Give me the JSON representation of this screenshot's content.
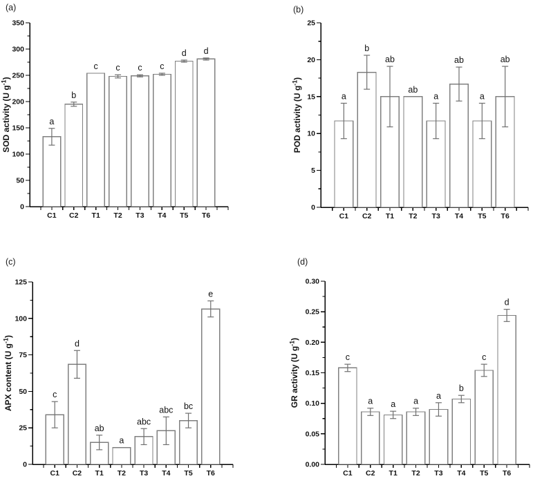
{
  "figure": {
    "background": "#ffffff",
    "axis_color": "#000000",
    "bar_fill": "#ffffff",
    "bar_stroke": "#7f7f7f",
    "error_color": "#6f6f6f",
    "letter_color": "#111111",
    "tick_label_color": "#111111"
  },
  "chart_data": [
    {
      "panel_label": "(a)",
      "type": "bar",
      "title": "",
      "xlabel": "",
      "ylabel": "SOD activity (U g⁻¹)",
      "ylim": [
        0,
        350
      ],
      "ytick_step": 50,
      "yminor_per_interval": 1,
      "ytick_decimals": 0,
      "grid": false,
      "legend": "none",
      "categories": [
        "C1",
        "C2",
        "T1",
        "T2",
        "T3",
        "T4",
        "T5",
        "T6"
      ],
      "values": [
        133,
        195,
        254,
        248,
        249,
        252,
        277,
        281
      ],
      "errors": [
        16,
        4,
        null,
        3,
        2,
        2,
        2,
        2
      ],
      "sig_letters": [
        "a",
        "b",
        "c",
        "c",
        "c",
        "c",
        "d",
        "d"
      ]
    },
    {
      "panel_label": "(b)",
      "type": "bar",
      "title": "",
      "xlabel": "",
      "ylabel": "POD activity (U g⁻¹)",
      "ylim": [
        0,
        25
      ],
      "ytick_step": 5,
      "yminor_per_interval": 1,
      "ytick_decimals": 0,
      "grid": false,
      "legend": "none",
      "categories": [
        "C1",
        "C2",
        "T1",
        "T2",
        "T3",
        "T4",
        "T5",
        "T6"
      ],
      "values": [
        11.7,
        18.3,
        15.0,
        15.0,
        11.7,
        16.7,
        11.7,
        15.0
      ],
      "errors": [
        2.4,
        2.3,
        4.1,
        null,
        2.4,
        2.3,
        2.4,
        4.1
      ],
      "sig_letters": [
        "a",
        "b",
        "ab",
        "ab",
        "a",
        "ab",
        "a",
        "ab"
      ]
    },
    {
      "panel_label": "(c)",
      "type": "bar",
      "title": "",
      "xlabel": "",
      "ylabel": "APX content (U g⁻¹)",
      "ylim": [
        0,
        125
      ],
      "ytick_step": 25,
      "yminor_per_interval": 1,
      "ytick_decimals": 0,
      "grid": false,
      "legend": "none",
      "categories": [
        "C1",
        "C2",
        "T1",
        "T2",
        "T3",
        "T4",
        "T5",
        "T6"
      ],
      "values": [
        34,
        68.5,
        15,
        11.5,
        19,
        23,
        30,
        106.5
      ],
      "errors": [
        9,
        9.5,
        5,
        null,
        5.5,
        9.5,
        5,
        5.5
      ],
      "sig_letters": [
        "c",
        "d",
        "ab",
        "a",
        "abc",
        "abc",
        "bc",
        "e"
      ]
    },
    {
      "panel_label": "(d)",
      "type": "bar",
      "title": "",
      "xlabel": "",
      "ylabel": "GR activity (U g⁻¹)",
      "ylim": [
        0,
        0.3
      ],
      "ytick_step": 0.05,
      "yminor_per_interval": 1,
      "ytick_decimals": 2,
      "grid": false,
      "legend": "none",
      "categories": [
        "C1",
        "C2",
        "T1",
        "T2",
        "T3",
        "T4",
        "T5",
        "T6"
      ],
      "values": [
        0.158,
        0.086,
        0.081,
        0.086,
        0.09,
        0.107,
        0.154,
        0.244
      ],
      "errors": [
        0.006,
        0.006,
        0.006,
        0.006,
        0.011,
        0.006,
        0.01,
        0.01
      ],
      "sig_letters": [
        "c",
        "a",
        "a",
        "a",
        "a",
        "b",
        "c",
        "d"
      ]
    }
  ]
}
